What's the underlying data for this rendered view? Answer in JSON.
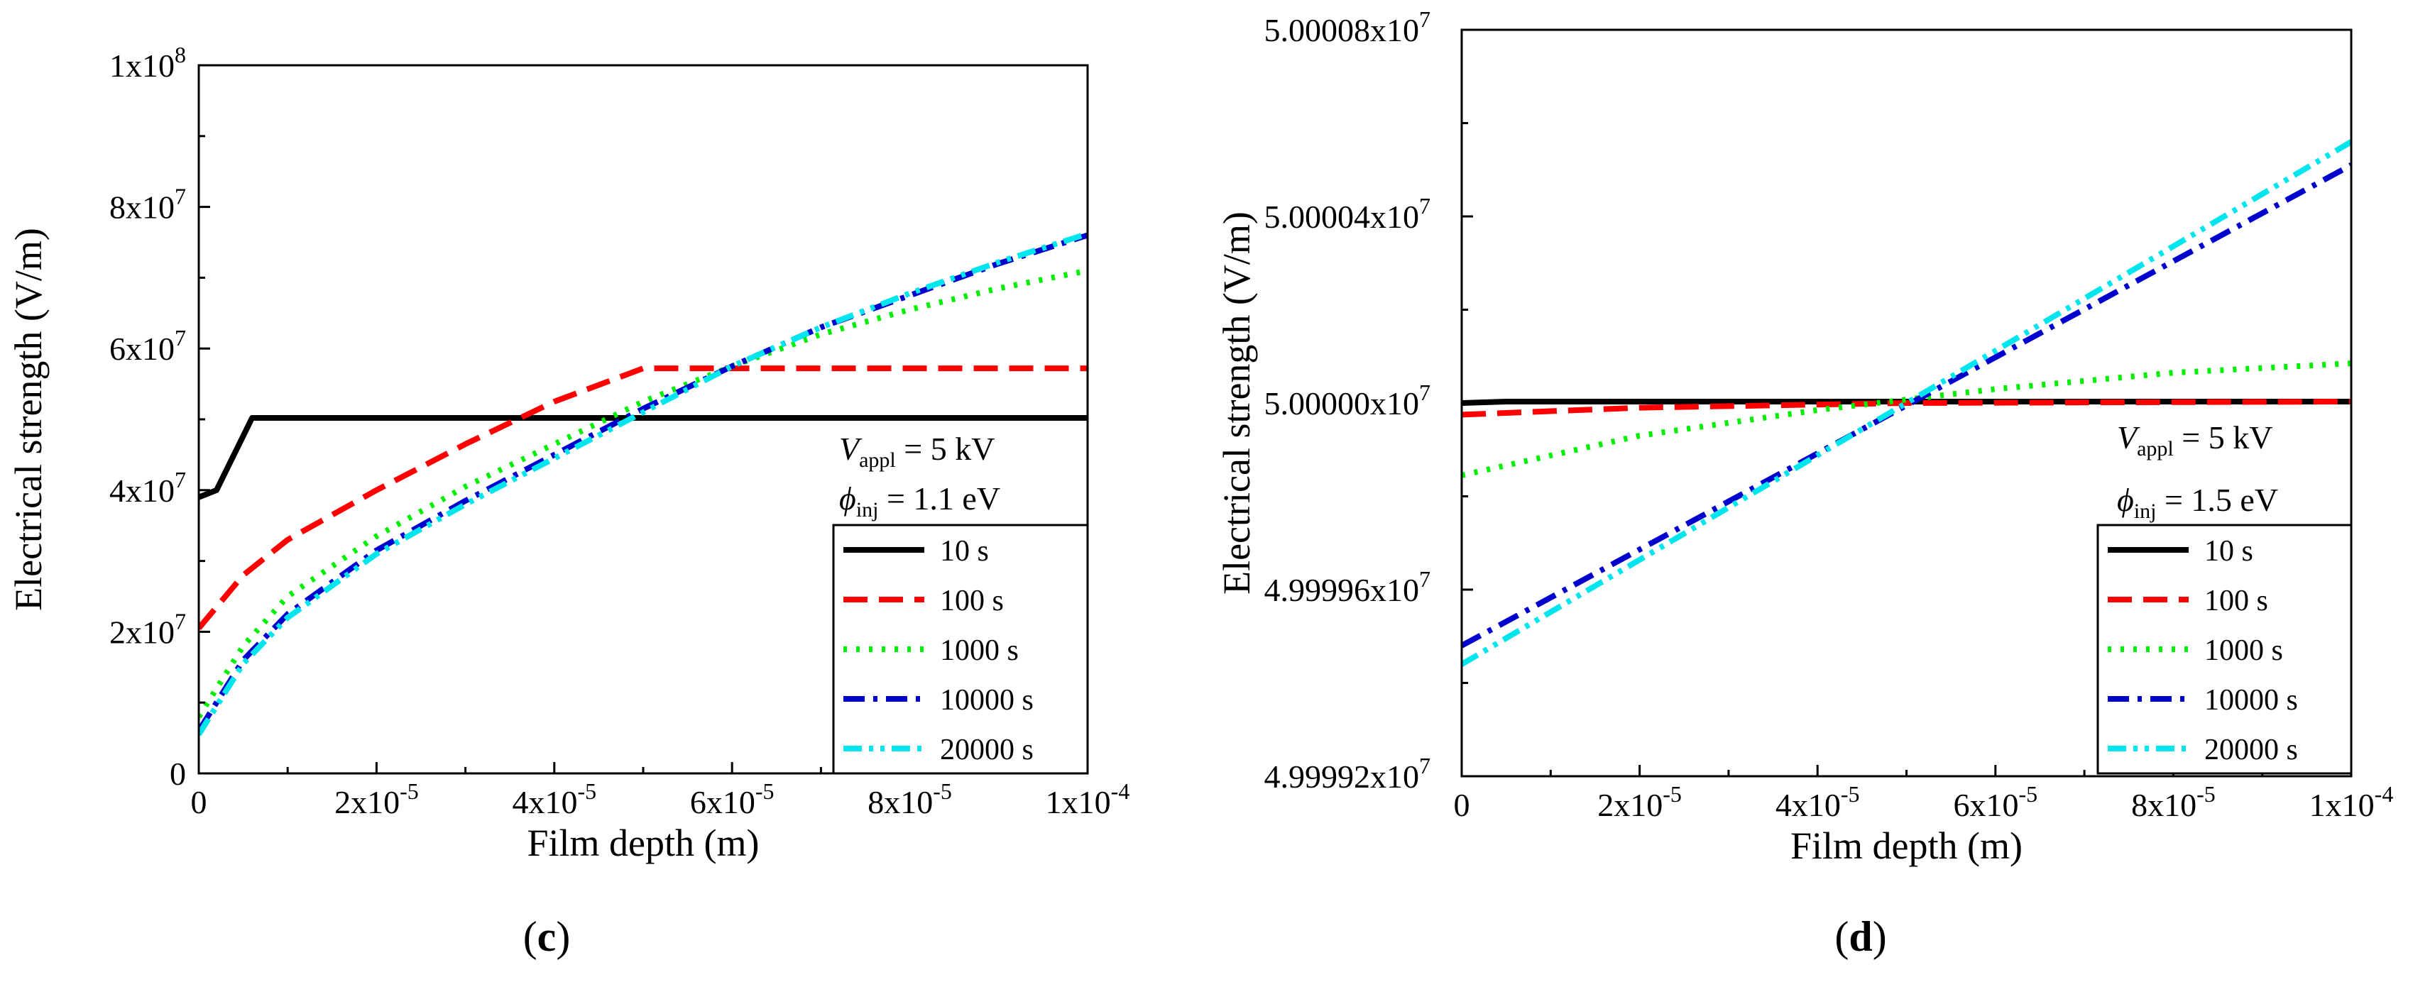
{
  "chart_data": [
    {
      "type": "line",
      "panel_label": {
        "open": "(",
        "letter": "c",
        "close": ")"
      },
      "xlabel": "Film depth (m)",
      "ylabel": "Electrical strength (V/m)",
      "xlim": [
        0,
        0.0001
      ],
      "ylim": [
        0,
        100000000
      ],
      "xticks": [
        {
          "value": 0,
          "mant": "0",
          "exp": ""
        },
        {
          "value": 2e-05,
          "mant": "2x10",
          "exp": "-5"
        },
        {
          "value": 4e-05,
          "mant": "4x10",
          "exp": "-5"
        },
        {
          "value": 6e-05,
          "mant": "6x10",
          "exp": "-5"
        },
        {
          "value": 8e-05,
          "mant": "8x10",
          "exp": "-5"
        },
        {
          "value": 0.0001,
          "mant": "1x10",
          "exp": "-4"
        }
      ],
      "yticks": [
        {
          "value": 0,
          "mant": "0",
          "exp": ""
        },
        {
          "value": 20000000,
          "mant": "2x10",
          "exp": "7"
        },
        {
          "value": 40000000,
          "mant": "4x10",
          "exp": "7"
        },
        {
          "value": 60000000,
          "mant": "6x10",
          "exp": "7"
        },
        {
          "value": 80000000,
          "mant": "8x10",
          "exp": "7"
        },
        {
          "value": 100000000,
          "mant": "1x10",
          "exp": "8"
        }
      ],
      "annotation": {
        "v_sym": "V",
        "v_sub": "appl",
        "v_text": " = 5 kV",
        "phi_sym": "ϕ",
        "phi_sub": "inj",
        "phi_text": " = 1.1 eV"
      },
      "series": [
        {
          "name": "10 s",
          "color": "#000000",
          "dash": "solid",
          "x": [
            0,
            2e-06,
            6e-06,
            0.0001
          ],
          "y": [
            39000000,
            40000000,
            50200000,
            50200000
          ]
        },
        {
          "name": "100 s",
          "color": "#ff0000",
          "dash": "dash",
          "x": [
            0,
            5e-06,
            1e-05,
            2e-05,
            3e-05,
            4e-05,
            5e-05,
            0.0001
          ],
          "y": [
            20500000,
            28000000,
            33000000,
            40000000,
            46500000,
            52500000,
            57200000,
            57200000
          ]
        },
        {
          "name": "1000 s",
          "color": "#00ee00",
          "dash": "dot",
          "x": [
            0,
            5e-06,
            1e-05,
            2e-05,
            3e-05,
            4e-05,
            5e-05,
            6e-05,
            7e-05,
            8e-05,
            9e-05,
            0.0001
          ],
          "y": [
            8000000,
            18000000,
            25000000,
            33500000,
            40500000,
            46500000,
            52500000,
            57500000,
            62000000,
            65500000,
            68500000,
            71000000
          ]
        },
        {
          "name": "10000 s",
          "color": "#0000cc",
          "dash": "dashdot",
          "x": [
            0,
            5e-06,
            1e-05,
            2e-05,
            3e-05,
            4e-05,
            5e-05,
            6e-05,
            7e-05,
            8e-05,
            9e-05,
            0.0001
          ],
          "y": [
            6000000,
            16000000,
            22500000,
            31500000,
            38500000,
            45000000,
            51500000,
            57500000,
            63000000,
            67500000,
            72000000,
            76000000
          ]
        },
        {
          "name": "20000 s",
          "color": "#00e5ee",
          "dash": "dashdotdot",
          "x": [
            0,
            5e-06,
            1e-05,
            2e-05,
            3e-05,
            4e-05,
            5e-05,
            6e-05,
            7e-05,
            8e-05,
            9e-05,
            0.0001
          ],
          "y": [
            5500000,
            15500000,
            22000000,
            31000000,
            38000000,
            44500000,
            51000000,
            57500000,
            63000000,
            67800000,
            72200000,
            76200000
          ]
        }
      ]
    },
    {
      "type": "line",
      "panel_label": {
        "open": "(",
        "letter": "d",
        "close": ")"
      },
      "xlabel": "Film depth (m)",
      "ylabel": "Electrical strength (V/m)",
      "xlim": [
        0,
        0.0001
      ],
      "ylim": [
        49999200,
        50000800
      ],
      "xticks": [
        {
          "value": 0,
          "mant": "0",
          "exp": ""
        },
        {
          "value": 2e-05,
          "mant": "2x10",
          "exp": "-5"
        },
        {
          "value": 4e-05,
          "mant": "4x10",
          "exp": "-5"
        },
        {
          "value": 6e-05,
          "mant": "6x10",
          "exp": "-5"
        },
        {
          "value": 8e-05,
          "mant": "8x10",
          "exp": "-5"
        },
        {
          "value": 0.0001,
          "mant": "1x10",
          "exp": "-4"
        }
      ],
      "yticks": [
        {
          "value": 49999200,
          "mant": "4.99992x10",
          "exp": "7"
        },
        {
          "value": 49999600,
          "mant": "4.99996x10",
          "exp": "7"
        },
        {
          "value": 50000000,
          "mant": "5.00000x10",
          "exp": "7"
        },
        {
          "value": 50000400,
          "mant": "5.00004x10",
          "exp": "7"
        },
        {
          "value": 50000800,
          "mant": "5.00008x10",
          "exp": "7"
        }
      ],
      "annotation": {
        "v_sym": "V",
        "v_sub": "appl",
        "v_text": " = 5 kV",
        "phi_sym": "ϕ",
        "phi_sub": "inj",
        "phi_text": " = 1.5 eV"
      },
      "series": [
        {
          "name": "10 s",
          "color": "#000000",
          "dash": "solid",
          "x": [
            0,
            5e-06,
            0.0001
          ],
          "y": [
            50000000,
            50000003,
            50000003
          ]
        },
        {
          "name": "100 s",
          "color": "#ff0000",
          "dash": "dash",
          "x": [
            0,
            2e-05,
            5e-05,
            0.0001
          ],
          "y": [
            49999975,
            49999990,
            50000000,
            50000003
          ]
        },
        {
          "name": "1000 s",
          "color": "#00ee00",
          "dash": "dot",
          "x": [
            0,
            2e-05,
            4e-05,
            6e-05,
            8e-05,
            0.0001
          ],
          "y": [
            49999845,
            49999930,
            49999985,
            50000030,
            50000065,
            50000085
          ]
        },
        {
          "name": "10000 s",
          "color": "#0000cc",
          "dash": "dashdot",
          "x": [
            0,
            0.0001
          ],
          "y": [
            49999480,
            50000510
          ]
        },
        {
          "name": "20000 s",
          "color": "#00e5ee",
          "dash": "dashdotdot",
          "x": [
            0,
            0.0001
          ],
          "y": [
            49999440,
            50000560
          ]
        }
      ]
    }
  ]
}
